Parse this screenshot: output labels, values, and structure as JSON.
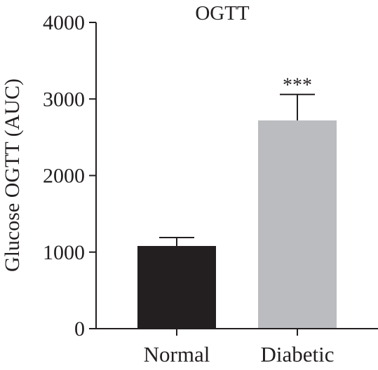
{
  "chart_data": {
    "type": "bar",
    "title": "OGTT",
    "xlabel": "",
    "ylabel": "Glucose OGTT (AUC)",
    "ylim": [
      0,
      4000
    ],
    "yticks": [
      0,
      1000,
      2000,
      3000,
      4000
    ],
    "categories": [
      "Normal",
      "Diabetic"
    ],
    "values": [
      1080,
      2720
    ],
    "error_upper": [
      110,
      340
    ],
    "bar_colors": [
      "#231f20",
      "#bbbcbf"
    ],
    "annotations": [
      "",
      "***"
    ],
    "grid": false,
    "legend": "none"
  }
}
